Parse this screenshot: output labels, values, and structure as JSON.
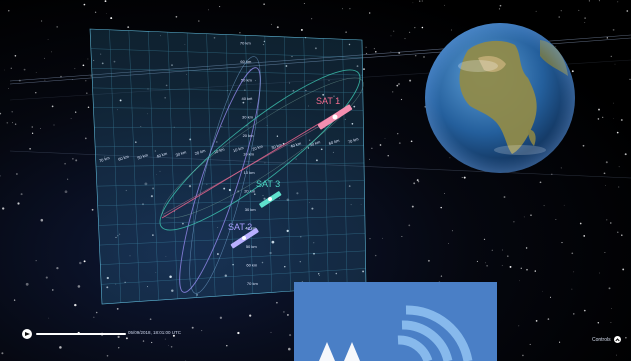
{
  "satellites": [
    {
      "label": "SAT 1",
      "color": "#f26d8f"
    },
    {
      "label": "SAT 3",
      "color": "#4fd6c3"
    },
    {
      "label": "SAT 2",
      "color": "#a89dff"
    }
  ],
  "grid": {
    "x_ticks": [
      "70 km",
      "60 km",
      "50 km",
      "40 km",
      "30 km",
      "20 km",
      "10 km",
      "10 km",
      "20 km",
      "30 km",
      "40 km",
      "50 km",
      "60 km",
      "70 km"
    ],
    "y_ticks": [
      "70 km",
      "60 km",
      "50 km",
      "40 km",
      "30 km",
      "20 km",
      "10 km",
      "10 km",
      "20 km",
      "30 km",
      "40 km",
      "50 km",
      "60 km",
      "70 km"
    ]
  },
  "timeline": {
    "timestamp": "05/09/2018, 18:01:00 UTC",
    "progress": 0.35
  },
  "controls": {
    "label": "Controls",
    "icon": "chevron-up-icon"
  },
  "colors": {
    "grid": "#3fa6c8",
    "orbit_pink": "#e0608a",
    "orbit_teal": "#3fc9b4",
    "orbit_purple": "#8f86e6",
    "promo": "#4a7fc6"
  }
}
